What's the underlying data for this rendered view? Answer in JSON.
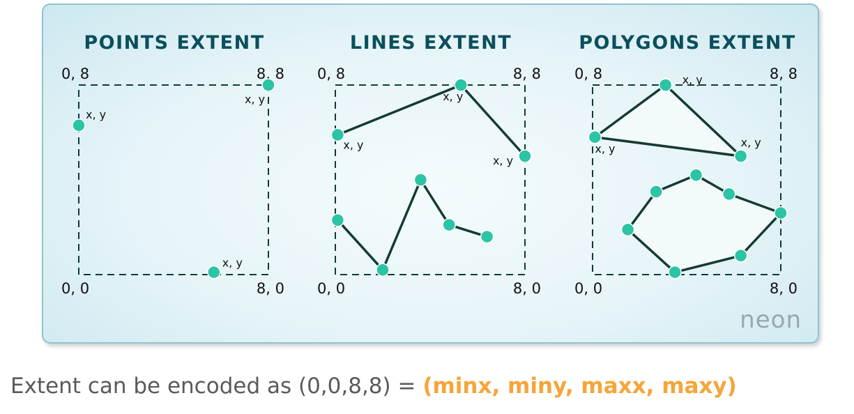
{
  "panels": [
    {
      "title": "POINTS EXTENT",
      "corners": {
        "top_left": "0, 8",
        "top_right": "8, 8",
        "bottom_left": "0, 0",
        "bottom_right": "8, 0"
      },
      "points": [
        {
          "label": "x, y",
          "x": 0.0,
          "y": 6.3
        },
        {
          "label": "x, y",
          "x": 8.0,
          "y": 8.0
        },
        {
          "label": "x, y",
          "x": 5.7,
          "y": 0.1
        }
      ]
    },
    {
      "title": "LINES EXTENT",
      "corners": {
        "top_left": "0, 8",
        "top_right": "8, 8",
        "bottom_left": "0, 0",
        "bottom_right": "8, 0"
      },
      "lines": [
        [
          {
            "x": 0.1,
            "y": 5.9,
            "label": "x, y"
          },
          {
            "x": 5.3,
            "y": 8.0,
            "label": "x, y"
          },
          {
            "x": 8.0,
            "y": 5.0,
            "label": "x, y"
          }
        ],
        [
          {
            "x": 0.1,
            "y": 2.3
          },
          {
            "x": 2.0,
            "y": 0.2
          },
          {
            "x": 3.6,
            "y": 4.0
          },
          {
            "x": 4.8,
            "y": 2.1
          },
          {
            "x": 6.4,
            "y": 1.6
          }
        ]
      ]
    },
    {
      "title": "POLYGONS EXTENT",
      "corners": {
        "top_left": "0, 8",
        "top_right": "8, 8",
        "bottom_left": "0, 0",
        "bottom_right": "8, 0"
      },
      "polygons": [
        [
          {
            "x": 3.1,
            "y": 8.0,
            "label": "x, y"
          },
          {
            "x": 6.3,
            "y": 5.0,
            "label": "x, y"
          },
          {
            "x": 0.1,
            "y": 5.8,
            "label": "x, y"
          }
        ],
        [
          {
            "x": 2.7,
            "y": 3.5
          },
          {
            "x": 4.4,
            "y": 4.2
          },
          {
            "x": 5.8,
            "y": 3.4
          },
          {
            "x": 8.0,
            "y": 2.6
          },
          {
            "x": 6.3,
            "y": 0.8
          },
          {
            "x": 3.5,
            "y": 0.1
          },
          {
            "x": 1.5,
            "y": 1.9
          }
        ]
      ]
    }
  ],
  "logo_text": "neon",
  "caption": {
    "prefix": "Extent can be encoded as (0,0,8,8) = ",
    "highlight": "(minx, miny, maxx, maxy)"
  },
  "colors": {
    "vertex": "#2bc4a4",
    "line": "#153b30",
    "title": "#0b4f5c",
    "highlight": "#f5a53a"
  }
}
